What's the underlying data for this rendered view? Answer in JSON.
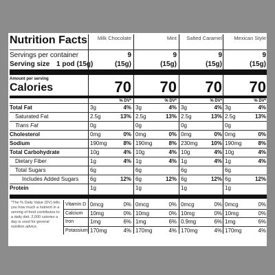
{
  "title": "Nutrition Facts",
  "columns": [
    {
      "name": "Milk Chocolate",
      "servings": "9",
      "serving_size": "(15g)",
      "calories": "70"
    },
    {
      "name": "Mint",
      "servings": "9",
      "serving_size": "(15g)",
      "calories": "70"
    },
    {
      "name": "Salted Caramel",
      "servings": "9",
      "serving_size": "(15g)",
      "calories": "70"
    },
    {
      "name": "Mexican Style",
      "servings": "9",
      "serving_size": "(15g)",
      "calories": "70"
    }
  ],
  "servings_label": "Servings per container",
  "serving_size_label": "Serving size",
  "serving_size_value": "1 pod (15g)",
  "amount_label": "Amount per serving",
  "calories_label": "Calories",
  "dv_label": "% DV*",
  "nutrients": [
    {
      "label": "Total Fat",
      "cells": [
        [
          "3g",
          "4%"
        ],
        [
          "3g",
          "4%"
        ],
        [
          "3g",
          "4%"
        ],
        [
          "3g",
          "4%"
        ]
      ]
    },
    {
      "label": "Saturated Fat",
      "cells": [
        [
          "2.5g",
          "13%"
        ],
        [
          "2.5g",
          "13%"
        ],
        [
          "2.5g",
          "13%"
        ],
        [
          "2.5g",
          "13%"
        ]
      ]
    },
    {
      "label": "Trans Fat",
      "cells": [
        [
          "0g"
        ],
        [
          "0g"
        ],
        [
          "0g"
        ],
        [
          "0g"
        ]
      ]
    },
    {
      "label": "Cholesterol",
      "cells": [
        [
          "0mg",
          "0%"
        ],
        [
          "0mg",
          "0%"
        ],
        [
          "0mg",
          "0%"
        ],
        [
          "0mg",
          "0%"
        ]
      ]
    },
    {
      "label": "Sodium",
      "cells": [
        [
          "190mg",
          "8%"
        ],
        [
          "190mg",
          "8%"
        ],
        [
          "230mg",
          "10%"
        ],
        [
          "190mg",
          "8%"
        ]
      ]
    },
    {
      "label": "Total Carbohydrate",
      "cells": [
        [
          "10g",
          "4%"
        ],
        [
          "10g",
          "4%"
        ],
        [
          "10g",
          "4%"
        ],
        [
          "10g",
          "4%"
        ]
      ]
    },
    {
      "label": "Dietary Fiber",
      "cells": [
        [
          "1g",
          "4%"
        ],
        [
          "1g",
          "4%"
        ],
        [
          "1g",
          "4%"
        ],
        [
          "1g",
          "4%"
        ]
      ]
    },
    {
      "label": "Total Sugars",
      "cells": [
        [
          "6g"
        ],
        [
          "6g"
        ],
        [
          "6g"
        ],
        [
          "6g"
        ]
      ]
    },
    {
      "label": "Includes Added Sugars",
      "cells": [
        [
          "6g",
          "12%"
        ],
        [
          "6g",
          "12%"
        ],
        [
          "6g",
          "12%"
        ],
        [
          "6g",
          "12%"
        ]
      ]
    },
    {
      "label": "Protein",
      "cells": [
        [
          "1g"
        ],
        [
          "1g"
        ],
        [
          "1g"
        ],
        [
          "1g"
        ]
      ]
    }
  ],
  "vitamins": [
    {
      "label": "Vitamin D",
      "cells": [
        [
          "0mcg",
          "0%"
        ],
        [
          "0mcg",
          "0%"
        ],
        [
          "0mcg",
          "0%"
        ],
        [
          "0mcg",
          "0%"
        ]
      ]
    },
    {
      "label": "Calcium",
      "cells": [
        [
          "10mg",
          "0%"
        ],
        [
          "10mg",
          "0%"
        ],
        [
          "10mg",
          "0%"
        ],
        [
          "10mg",
          "0%"
        ]
      ]
    },
    {
      "label": "Iron",
      "cells": [
        [
          "1mg",
          "6%"
        ],
        [
          "1mg",
          "6%"
        ],
        [
          "0.9mg",
          "6%"
        ],
        [
          "1mg",
          "6%"
        ]
      ]
    },
    {
      "label": "Potassium",
      "cells": [
        [
          "170mg",
          "4%"
        ],
        [
          "170mg",
          "4%"
        ],
        [
          "170mg",
          "4%"
        ],
        [
          "170mg",
          "4%"
        ]
      ]
    }
  ],
  "footnote": "*The % Daily Value (DV) tells you how much a nutrient in a serving of food contributes to a daily diet. 2,000 calories a day is used for general nutrition advice."
}
